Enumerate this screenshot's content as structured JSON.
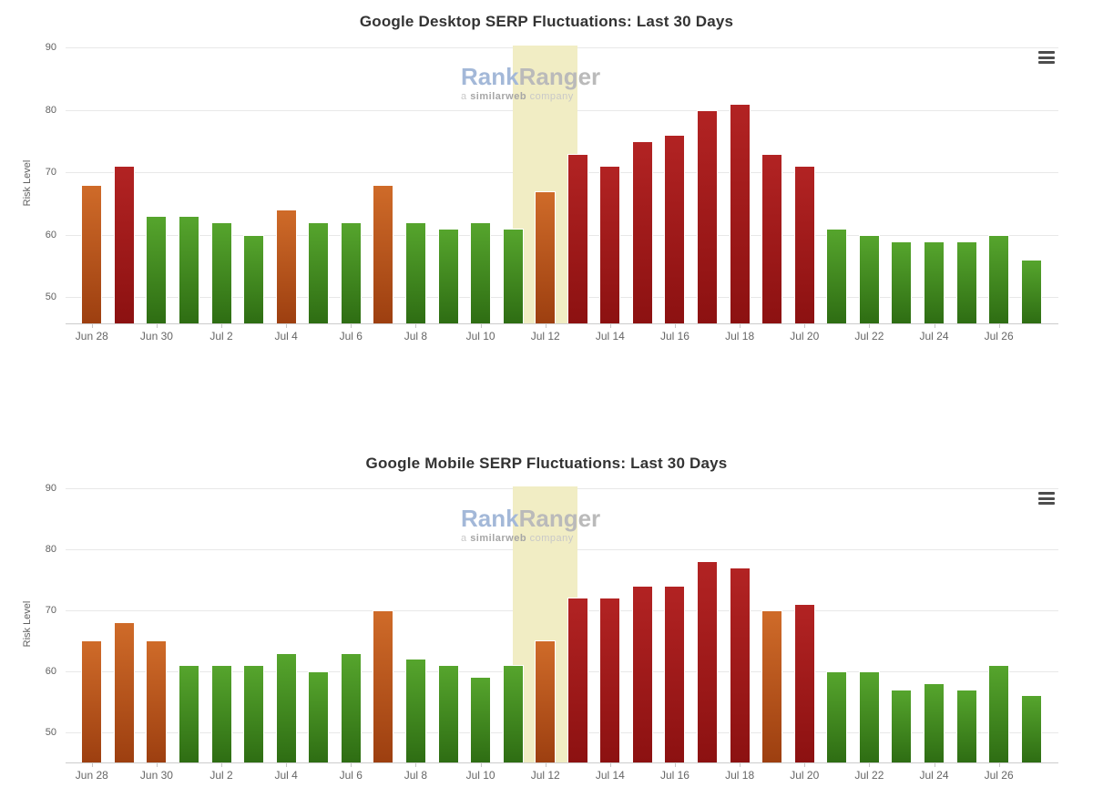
{
  "page": {
    "background": "#ffffff"
  },
  "icons": {
    "chart_menu": "hamburger-menu-icon"
  },
  "watermark": {
    "rank": "Rank",
    "ranger": "Ranger",
    "sub_prefix": "a ",
    "sub_brand": "similarweb",
    "sub_suffix": " company"
  },
  "colors": {
    "title": "#333333",
    "axis_text": "#606060",
    "x_label_text": "#666666",
    "gridline": "#e8e8e8",
    "axis_line": "#cccccc",
    "highlight_band": "#f1edc4",
    "bar_low": {
      "top": "#56a52d",
      "bottom": "#2e6d13"
    },
    "bar_medium": {
      "top": "#cf6b29",
      "bottom": "#9d3f10"
    },
    "bar_high": {
      "top": "#b22323",
      "bottom": "#8c1111"
    }
  },
  "chart_data": [
    {
      "type": "bar",
      "title": "Google Desktop SERP Fluctuations: Last 30 Days",
      "xlabel": "",
      "ylabel": "Risk Level",
      "ylim": [
        45.8,
        90
      ],
      "yticks": [
        50,
        60,
        70,
        80,
        90
      ],
      "grid": true,
      "label_every": 2,
      "categories": [
        "Jun 28",
        "Jun 29",
        "Jun 30",
        "Jul 1",
        "Jul 2",
        "Jul 3",
        "Jul 4",
        "Jul 5",
        "Jul 6",
        "Jul 7",
        "Jul 8",
        "Jul 9",
        "Jul 10",
        "Jul 11",
        "Jul 12",
        "Jul 13",
        "Jul 14",
        "Jul 15",
        "Jul 16",
        "Jul 17",
        "Jul 18",
        "Jul 19",
        "Jul 20",
        "Jul 21",
        "Jul 22",
        "Jul 23",
        "Jul 24",
        "Jul 25",
        "Jul 26",
        "Jul 27"
      ],
      "values": [
        68,
        71,
        63,
        63,
        62,
        60,
        64,
        62,
        62,
        68,
        62,
        61,
        62,
        61,
        67,
        73,
        71,
        75,
        76,
        80,
        81,
        73,
        71,
        61,
        60,
        59,
        59,
        59,
        60,
        56
      ],
      "color_rules": {
        "medium_min": 64,
        "high_min": 71
      },
      "highlight_band": {
        "from_category": "Jul 11",
        "to_category": "Jul 13",
        "color": "#f1edc4"
      }
    },
    {
      "type": "bar",
      "title": "Google Mobile SERP Fluctuations: Last 30 Days",
      "xlabel": "",
      "ylabel": "Risk Level",
      "ylim": [
        45,
        90
      ],
      "yticks": [
        50,
        60,
        70,
        80,
        90
      ],
      "grid": true,
      "label_every": 2,
      "categories": [
        "Jun 28",
        "Jun 29",
        "Jun 30",
        "Jul 1",
        "Jul 2",
        "Jul 3",
        "Jul 4",
        "Jul 5",
        "Jul 6",
        "Jul 7",
        "Jul 8",
        "Jul 9",
        "Jul 10",
        "Jul 11",
        "Jul 12",
        "Jul 13",
        "Jul 14",
        "Jul 15",
        "Jul 16",
        "Jul 17",
        "Jul 18",
        "Jul 19",
        "Jul 20",
        "Jul 21",
        "Jul 22",
        "Jul 23",
        "Jul 24",
        "Jul 25",
        "Jul 26",
        "Jul 27"
      ],
      "values": [
        65,
        68,
        65,
        61,
        61,
        61,
        63,
        60,
        63,
        70,
        62,
        61,
        59,
        61,
        65,
        72,
        72,
        74,
        74,
        78,
        77,
        70,
        71,
        60,
        60,
        57,
        58,
        57,
        61,
        56
      ],
      "color_rules": {
        "medium_min": 64,
        "high_min": 71
      },
      "highlight_band": {
        "from_category": "Jul 11",
        "to_category": "Jul 13",
        "color": "#f1edc4"
      }
    }
  ]
}
